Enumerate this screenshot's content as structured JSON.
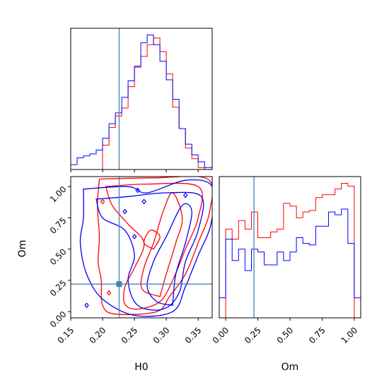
{
  "chart_data": {
    "type": "corner",
    "parameters": [
      "H0",
      "Om"
    ],
    "truths": {
      "H0": 0.226,
      "Om": 0.22
    },
    "series_colors": {
      "red": "#ff0000",
      "blue": "#0000ff",
      "truth": "#4682b4"
    },
    "h0_histogram": {
      "type": "histogram",
      "xlim": [
        0.15,
        0.372
      ],
      "x_ticks": [
        "0.15",
        "0.20",
        "0.25",
        "0.30",
        "0.35"
      ],
      "bin_edges": [
        0.15,
        0.16,
        0.17,
        0.18,
        0.19,
        0.2,
        0.21,
        0.22,
        0.23,
        0.24,
        0.25,
        0.26,
        0.27,
        0.28,
        0.29,
        0.3,
        0.31,
        0.32,
        0.33,
        0.34,
        0.35,
        0.36,
        0.372
      ],
      "series": [
        {
          "color": "red",
          "counts": [
            0,
            0,
            0,
            0,
            0,
            25,
            43,
            55,
            63,
            85,
            105,
            116,
            128,
            135,
            121,
            98,
            64,
            42,
            22,
            11,
            2,
            0
          ]
        },
        {
          "color": "blue",
          "counts": [
            5,
            12,
            14,
            16,
            20,
            32,
            47,
            58,
            74,
            91,
            106,
            130,
            138,
            128,
            111,
            92,
            72,
            42,
            26,
            15,
            8,
            2
          ]
        }
      ]
    },
    "om_histogram": {
      "type": "histogram",
      "xlim": [
        -0.05,
        1.05
      ],
      "x_ticks": [
        "0.00",
        "0.25",
        "0.50",
        "0.75",
        "1.00"
      ],
      "bin_edges": [
        -0.05,
        0.0,
        0.05,
        0.1,
        0.15,
        0.2,
        0.25,
        0.3,
        0.35,
        0.4,
        0.45,
        0.5,
        0.55,
        0.6,
        0.65,
        0.7,
        0.75,
        0.8,
        0.85,
        0.9,
        0.95,
        1.0,
        1.05
      ],
      "series": [
        {
          "color": "red",
          "counts": [
            0,
            62,
            55,
            68,
            62,
            74,
            56,
            56,
            60,
            62,
            80,
            78,
            70,
            74,
            75,
            84,
            86,
            86,
            90,
            94,
            92,
            0
          ]
        },
        {
          "color": "blue",
          "counts": [
            14,
            55,
            40,
            48,
            33,
            48,
            46,
            37,
            37,
            46,
            40,
            46,
            56,
            52,
            51,
            64,
            64,
            74,
            72,
            76,
            52,
            14
          ]
        }
      ]
    },
    "joint": {
      "type": "contour",
      "xlim": [
        0.15,
        0.372
      ],
      "ylim": [
        -0.05,
        1.08
      ],
      "x_ticks": [
        "0.15",
        "0.20",
        "0.25",
        "0.30",
        "0.35"
      ],
      "y_ticks": [
        "0.00",
        "0.25",
        "0.50",
        "0.75",
        "1.00"
      ],
      "series": [
        {
          "color": "red",
          "contours": [
            [
              [
                0.195,
                1.06
              ],
              [
                0.28,
                1.07
              ],
              [
                0.365,
                1.06
              ],
              [
                0.368,
                0.8
              ],
              [
                0.35,
                0.55
              ],
              [
                0.33,
                0.3
              ],
              [
                0.305,
                0.12
              ],
              [
                0.285,
                0.0
              ],
              [
                0.22,
                -0.02
              ],
              [
                0.2,
                0.05
              ],
              [
                0.198,
                0.25
              ],
              [
                0.193,
                0.4
              ],
              [
                0.195,
                0.6
              ],
              [
                0.192,
                0.85
              ],
              [
                0.195,
                1.06
              ]
            ],
            [
              [
                0.205,
                1.0
              ],
              [
                0.27,
                1.02
              ],
              [
                0.35,
                1.0
              ],
              [
                0.35,
                0.75
              ],
              [
                0.33,
                0.5
              ],
              [
                0.31,
                0.25
              ],
              [
                0.29,
                0.08
              ],
              [
                0.255,
                0.02
              ],
              [
                0.235,
                0.06
              ],
              [
                0.235,
                0.2
              ],
              [
                0.25,
                0.35
              ],
              [
                0.265,
                0.55
              ],
              [
                0.24,
                0.7
              ],
              [
                0.215,
                0.85
              ],
              [
                0.205,
                1.0
              ]
            ],
            [
              [
                0.29,
                0.12
              ],
              [
                0.3,
                0.3
              ],
              [
                0.315,
                0.55
              ],
              [
                0.325,
                0.75
              ],
              [
                0.31,
                0.95
              ],
              [
                0.295,
                0.8
              ],
              [
                0.28,
                0.55
              ],
              [
                0.265,
                0.35
              ],
              [
                0.262,
                0.18
              ],
              [
                0.29,
                0.12
              ]
            ],
            [
              [
                0.28,
                0.5
              ],
              [
                0.29,
                0.6
              ],
              [
                0.275,
                0.65
              ],
              [
                0.265,
                0.55
              ],
              [
                0.28,
                0.5
              ]
            ]
          ]
        },
        {
          "color": "blue",
          "contours": [
            [
              [
                0.17,
                0.98
              ],
              [
                0.24,
                1.0
              ],
              [
                0.27,
                0.95
              ],
              [
                0.33,
                1.05
              ],
              [
                0.372,
                1.0
              ],
              [
                0.37,
                0.7
              ],
              [
                0.35,
                0.45
              ],
              [
                0.33,
                0.2
              ],
              [
                0.31,
                0.0
              ],
              [
                0.25,
                -0.03
              ],
              [
                0.2,
                0.1
              ],
              [
                0.175,
                0.3
              ],
              [
                0.165,
                0.55
              ],
              [
                0.17,
                0.75
              ],
              [
                0.17,
                0.98
              ]
            ],
            [
              [
                0.19,
                0.9
              ],
              [
                0.24,
                0.92
              ],
              [
                0.3,
                0.95
              ],
              [
                0.355,
                0.92
              ],
              [
                0.35,
                0.65
              ],
              [
                0.33,
                0.4
              ],
              [
                0.32,
                0.15
              ],
              [
                0.295,
                0.02
              ],
              [
                0.255,
                0.05
              ],
              [
                0.24,
                0.25
              ],
              [
                0.25,
                0.45
              ],
              [
                0.235,
                0.65
              ],
              [
                0.2,
                0.75
              ],
              [
                0.19,
                0.9
              ]
            ],
            [
              [
                0.31,
                0.05
              ],
              [
                0.315,
                0.3
              ],
              [
                0.33,
                0.55
              ],
              [
                0.34,
                0.8
              ],
              [
                0.325,
                0.85
              ],
              [
                0.3,
                0.6
              ],
              [
                0.28,
                0.4
              ],
              [
                0.27,
                0.2
              ],
              [
                0.285,
                0.08
              ],
              [
                0.31,
                0.05
              ]
            ]
          ]
        }
      ],
      "markers": [
        {
          "color": "red",
          "x": 0.2,
          "y": 0.88
        },
        {
          "color": "red",
          "x": 0.21,
          "y": 0.15
        },
        {
          "color": "blue",
          "x": 0.175,
          "y": 0.05
        },
        {
          "color": "blue",
          "x": 0.33,
          "y": 0.93
        },
        {
          "color": "blue",
          "x": 0.255,
          "y": 0.97
        },
        {
          "color": "blue",
          "x": 0.25,
          "y": 0.6
        },
        {
          "color": "blue",
          "x": 0.235,
          "y": 0.8
        },
        {
          "color": "blue",
          "x": 0.265,
          "y": 0.88
        }
      ]
    },
    "xlabels": {
      "h0": "H0",
      "om": "Om"
    },
    "ylabels": {
      "joint": "Om"
    }
  }
}
